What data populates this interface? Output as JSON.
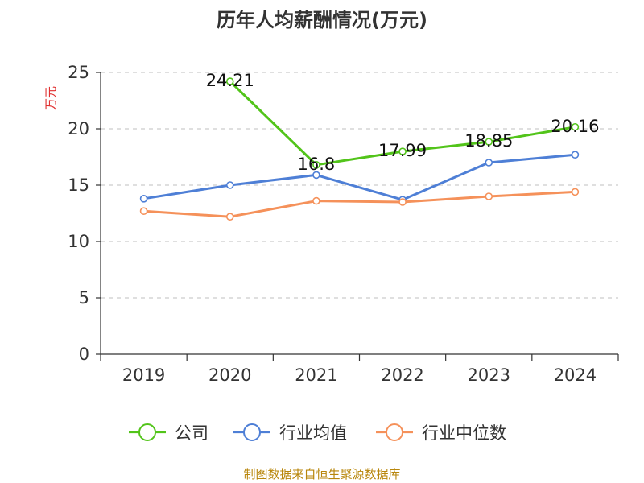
{
  "chart_data": {
    "type": "line",
    "title": "历年人均薪酬情况(万元)",
    "ylabel": "万元",
    "xlabel": "",
    "categories": [
      "2019",
      "2020",
      "2021",
      "2022",
      "2023",
      "2024"
    ],
    "ylim": [
      0,
      25
    ],
    "yticks": [
      0,
      5,
      10,
      15,
      20,
      25
    ],
    "grid": true,
    "legend_position": "bottom",
    "series": [
      {
        "name": "公司",
        "color": "#52c41a",
        "values": [
          null,
          24.21,
          16.8,
          17.99,
          18.85,
          20.16
        ],
        "data_labels": [
          null,
          "24.21",
          "16.8",
          "17.99",
          "18.85",
          "20.16"
        ]
      },
      {
        "name": "行业均值",
        "color": "#4e7fd6",
        "values": [
          13.8,
          15.0,
          15.9,
          13.7,
          17.0,
          17.7
        ]
      },
      {
        "name": "行业中位数",
        "color": "#f5915a",
        "values": [
          12.7,
          12.2,
          13.6,
          13.5,
          14.0,
          14.4
        ]
      }
    ],
    "source": "制图数据来自恒生聚源数据库"
  }
}
